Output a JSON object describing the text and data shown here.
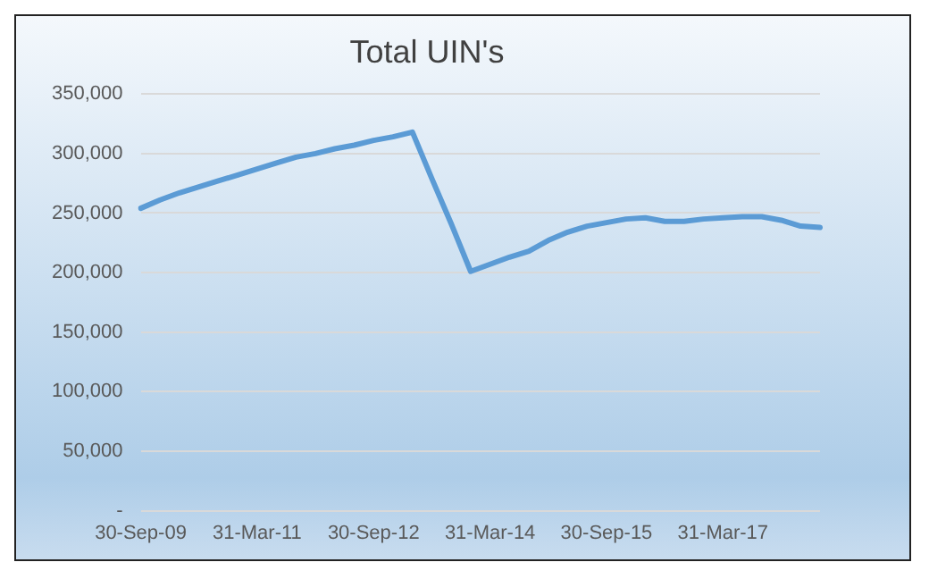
{
  "chart_data": {
    "type": "line",
    "title": "Total UIN's",
    "categories": [
      "30-Sep-09",
      null,
      null,
      null,
      null,
      null,
      "31-Mar-11",
      null,
      null,
      null,
      null,
      null,
      "30-Sep-12",
      null,
      null,
      null,
      null,
      null,
      "31-Mar-14",
      null,
      null,
      null,
      null,
      null,
      "30-Sep-15",
      null,
      null,
      null,
      null,
      null,
      "31-Mar-17",
      null,
      null,
      null,
      null,
      null
    ],
    "series": [
      {
        "color": "#5b9bd5",
        "values": [
          254000,
          261000,
          267000,
          272000,
          277000,
          282000,
          287000,
          292000,
          297000,
          300000,
          304000,
          307000,
          311000,
          314000,
          318000,
          279000,
          241000,
          201000,
          207000,
          213000,
          218000,
          227000,
          234000,
          239000,
          242000,
          245000,
          246000,
          243000,
          243000,
          245000,
          246000,
          247000,
          247000,
          244000,
          239000,
          238000
        ]
      }
    ],
    "ylim": [
      0,
      350000
    ],
    "yticks": [
      {
        "value": 0,
        "label": "-"
      },
      {
        "value": 50000,
        "label": "50,000"
      },
      {
        "value": 100000,
        "label": "100,000"
      },
      {
        "value": 150000,
        "label": "150,000"
      },
      {
        "value": 200000,
        "label": "200,000"
      },
      {
        "value": 250000,
        "label": "250,000"
      },
      {
        "value": 300000,
        "label": "300,000"
      },
      {
        "value": 350000,
        "label": "350,000"
      }
    ],
    "grid": "y",
    "legend": false,
    "marker": "none",
    "line_style": "solid"
  }
}
